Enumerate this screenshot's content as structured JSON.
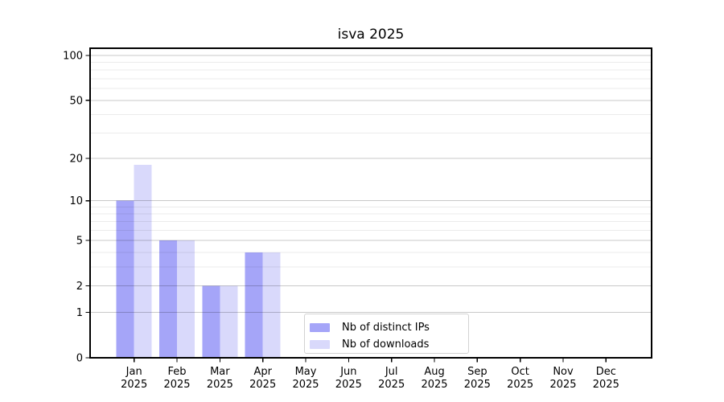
{
  "chart_data": {
    "type": "bar",
    "title": "isva 2025",
    "categories": [
      "Jan",
      "Feb",
      "Mar",
      "Apr",
      "May",
      "Jun",
      "Jul",
      "Aug",
      "Sep",
      "Oct",
      "Nov",
      "Dec"
    ],
    "year_label": "2025",
    "series": [
      {
        "name": "Nb of distinct IPs",
        "color": "#a5a5f8",
        "values": [
          10,
          5,
          2,
          4,
          0,
          0,
          0,
          0,
          0,
          0,
          0,
          0
        ]
      },
      {
        "name": "Nb of downloads",
        "color": "#d9d9fb",
        "values": [
          18,
          5,
          2,
          4,
          0,
          0,
          0,
          0,
          0,
          0,
          0,
          0
        ]
      }
    ],
    "yscale": "log1p",
    "ylim": [
      0,
      112
    ],
    "yticks": [
      0,
      1,
      2,
      5,
      10,
      20,
      50,
      100
    ],
    "yticks_minor": [
      3,
      4,
      6,
      7,
      8,
      9,
      30,
      40,
      60,
      70,
      80,
      90
    ],
    "grid": "on",
    "legend_position": "inside-bottom-center",
    "colors": {
      "spine": "#000000",
      "grid_major": "rgba(0,0,0,0.21)",
      "grid_minor": "rgba(0,0,0,0.08)",
      "text": "#000000",
      "background": "#ffffff"
    }
  }
}
